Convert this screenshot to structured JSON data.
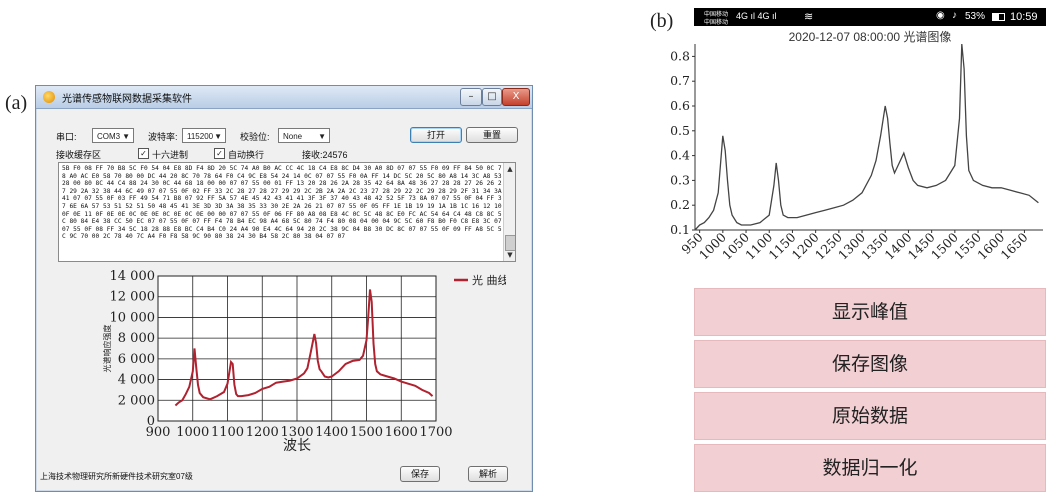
{
  "panel_a_label": "(a)",
  "panel_b_label": "(b)",
  "app": {
    "title": "光谱传感物联网数据采集软件",
    "window_buttons": {
      "minimize": "–",
      "maximize": "□",
      "close": "X"
    },
    "serial_label": "串口:",
    "serial_value": "COM3",
    "baud_label": "波特率:",
    "baud_value": "115200",
    "parity_label": "校验位:",
    "parity_value": "None",
    "open_button": "打开",
    "reset_button": "重置",
    "buffer_label": "接收缓存区",
    "hex_check_label": "十六进制",
    "auto_wrap_label": "自动换行",
    "received_label": "接收:24576",
    "hex_data": "5B F0 08 FF 70 B8 5C F0 54 04 E8 8D F4 8D 20 5C 74 A0 B0 AC CC 4C 18 C4 E8 8C D4 30 A0 8D 07 07 55 F0 09 FF 84 50 0C 78 A0 AC E0 58 70 80 00 DC 44 20 8C 70 78 64 F0 C4 9C E8 54 24 14 0C 07 07 55 F0 0A FF 14 DC 5C 20 5C 80 A8 14 3C A8 53 28 00 80 8C 44 C4 88 24 30 0C 44 68 18 00 00 07 07 55 00 01 FF 13 20 28 26 2A 28 35 42 64 8A 48 36 27 28 28 27 26 26 27 29 2A 32 38 44 6C 49 07 07 55 0F 02 FF 33 2C 28 27 28 27 29 29 2C 2B 2A 2A 2C 23 27 28 29 22 2C 29 28 29 2F 31 34 3A 41 07 07 55 0F 03 FF 49 54 71 B8 07 92 FF 5A 57 4E 45 42 43 41 41 3F 3F 37 40 43 48 42 52 5F 73 8A 07 07 55 0F 04 FF 37 6E 6A 57 53 51 52 51 50 48 45 41 3E 3D 3D 3A 38 35 33 30 2E 2A 26 21 07 07 55 0F 05 FF 1E 1B 19 19 1A 1B 1C 16 12 10 0F 0E 11 0F 0E 0E 0C 0E 0E 0C 0E 0C 0E 00 00 07 07 55 0F 06 FF 80 A8 08 E8 4C 0C 5C 48 8C E0 FC AC 54 64 C4 48 C8 8C 5C 80 84 E4 38 CC 50 EC 07 07 55 0F 07 FF F4 78 B4 EC 98 A4 68 5C 80 74 F4 80 08 04 00 04 9C 5C 60 F8 B0 F0 C8 E8 3C 07 07 55 0F 08 FF 34 5C 18 28 88 E8 BC C4 B4 C0 24 A4 90 E4 4C 64 94 20 2C 38 9C 04 B8 30 DC 8C 07 07 55 0F 09 FF A8 5C 5C 9C 70 00 2C 78 40 7C A4 F0 F8 58 9C 90 80 38 24 30 B4 58 2C 80 38 04 07 07",
    "legend_label": "光 曲线",
    "y_axis_label": "光谱响应强度",
    "x_axis_label": "波长",
    "x_ticks": [
      "900",
      "1000",
      "1100",
      "1200",
      "1300",
      "1400",
      "1500",
      "1600",
      "1700"
    ],
    "y_ticks": [
      "0",
      "2 000",
      "4 000",
      "6 000",
      "8 000",
      "10 000",
      "12 000",
      "14 000"
    ],
    "status_text": "上海技术物理研究所新硬件技术研究室07级",
    "save_button": "保存",
    "parse_button": "解析"
  },
  "phone": {
    "status_left_top": "中国移动",
    "status_left_bottom": "中国移动",
    "status_signal": "4G ıl 4G ıl",
    "status_right": "53%",
    "status_time": "10:59",
    "plot_title": "2020-12-07 08:00:00 光谱图像",
    "x_ticks": [
      "950",
      "1000",
      "1050",
      "1100",
      "1150",
      "1200",
      "1250",
      "1300",
      "1350",
      "1400",
      "1450",
      "1500",
      "1550",
      "1600",
      "1650"
    ],
    "y_ticks": [
      "0.1",
      "0.2",
      "0.3",
      "0.4",
      "0.5",
      "0.6",
      "0.7",
      "0.8"
    ],
    "buttons": [
      "显示峰值",
      "保存图像",
      "原始数据",
      "数据归一化"
    ]
  },
  "chart_data": [
    {
      "type": "line",
      "x": [
        950,
        960,
        970,
        980,
        990,
        1000,
        1005,
        1010,
        1015,
        1020,
        1030,
        1050,
        1070,
        1090,
        1100,
        1110,
        1115,
        1120,
        1125,
        1130,
        1140,
        1160,
        1180,
        1200,
        1220,
        1240,
        1260,
        1280,
        1300,
        1320,
        1330,
        1340,
        1350,
        1355,
        1360,
        1365,
        1370,
        1380,
        1390,
        1400,
        1420,
        1440,
        1460,
        1480,
        1490,
        1500,
        1505,
        1510,
        1515,
        1520,
        1525,
        1530,
        1540,
        1560,
        1580,
        1600,
        1620,
        1640,
        1660,
        1680,
        1690
      ],
      "y": [
        1500,
        1800,
        2000,
        2600,
        3300,
        4800,
        7000,
        5200,
        3500,
        2700,
        2300,
        2100,
        2400,
        2800,
        3600,
        5700,
        5500,
        3500,
        2600,
        2400,
        2400,
        2500,
        2700,
        3100,
        3300,
        3700,
        3800,
        3900,
        4100,
        4600,
        5100,
        6700,
        8400,
        7500,
        5800,
        5000,
        4800,
        4300,
        4200,
        4300,
        4800,
        5500,
        5800,
        5900,
        6300,
        7800,
        10000,
        12700,
        11500,
        7500,
        5500,
        4800,
        4500,
        4300,
        4100,
        3800,
        3600,
        3400,
        3000,
        2700,
        2400
      ],
      "xlabel": "波长",
      "ylabel": "光谱响应强度",
      "xlim": [
        900,
        1700
      ],
      "ylim": [
        0,
        14000
      ],
      "grid": true,
      "legend": "top-right",
      "series": [
        {
          "name": "光 曲线"
        }
      ],
      "color": "#b0222f"
    },
    {
      "type": "line",
      "title": "2020-12-07 08:00:00 光谱图像",
      "x": [
        940,
        950,
        960,
        970,
        980,
        990,
        1000,
        1005,
        1010,
        1015,
        1020,
        1030,
        1040,
        1060,
        1080,
        1100,
        1110,
        1115,
        1120,
        1125,
        1130,
        1140,
        1160,
        1180,
        1200,
        1220,
        1240,
        1260,
        1280,
        1300,
        1320,
        1330,
        1340,
        1350,
        1355,
        1360,
        1365,
        1370,
        1380,
        1390,
        1400,
        1410,
        1420,
        1440,
        1460,
        1480,
        1500,
        1510,
        1515,
        1520,
        1525,
        1530,
        1540,
        1560,
        1580,
        1600,
        1620,
        1640,
        1660,
        1680
      ],
      "y": [
        0.1,
        0.12,
        0.13,
        0.15,
        0.18,
        0.25,
        0.48,
        0.42,
        0.3,
        0.2,
        0.16,
        0.13,
        0.12,
        0.12,
        0.13,
        0.16,
        0.28,
        0.37,
        0.3,
        0.2,
        0.16,
        0.15,
        0.15,
        0.16,
        0.17,
        0.18,
        0.19,
        0.2,
        0.22,
        0.25,
        0.32,
        0.38,
        0.48,
        0.6,
        0.55,
        0.45,
        0.36,
        0.33,
        0.37,
        0.41,
        0.35,
        0.3,
        0.28,
        0.27,
        0.28,
        0.3,
        0.36,
        0.55,
        0.85,
        0.75,
        0.48,
        0.34,
        0.3,
        0.28,
        0.27,
        0.27,
        0.26,
        0.25,
        0.24,
        0.21
      ],
      "xlim": [
        940,
        1690
      ],
      "ylim": [
        0.1,
        0.85
      ],
      "grid": false,
      "color": "#444444"
    }
  ]
}
